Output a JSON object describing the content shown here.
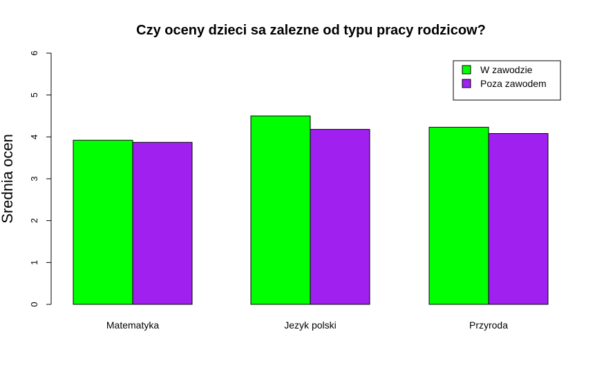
{
  "chart_data": {
    "type": "bar",
    "title": "Czy oceny dzieci sa zalezne od typu pracy rodzicow?",
    "xlabel": "",
    "ylabel": "Srednia ocen",
    "categories": [
      "Matematyka",
      "Jezyk polski",
      "Przyroda"
    ],
    "series": [
      {
        "name": "W zawodzie",
        "color": "#00ff00",
        "values": [
          3.92,
          4.5,
          4.23
        ]
      },
      {
        "name": "Poza zawodem",
        "color": "#a020f0",
        "values": [
          3.87,
          4.18,
          4.08
        ]
      }
    ],
    "ylim": [
      0,
      6
    ],
    "yticks": [
      "0",
      "1",
      "2",
      "3",
      "4",
      "5",
      "6"
    ],
    "legend_position": "top-right",
    "grid": false
  }
}
